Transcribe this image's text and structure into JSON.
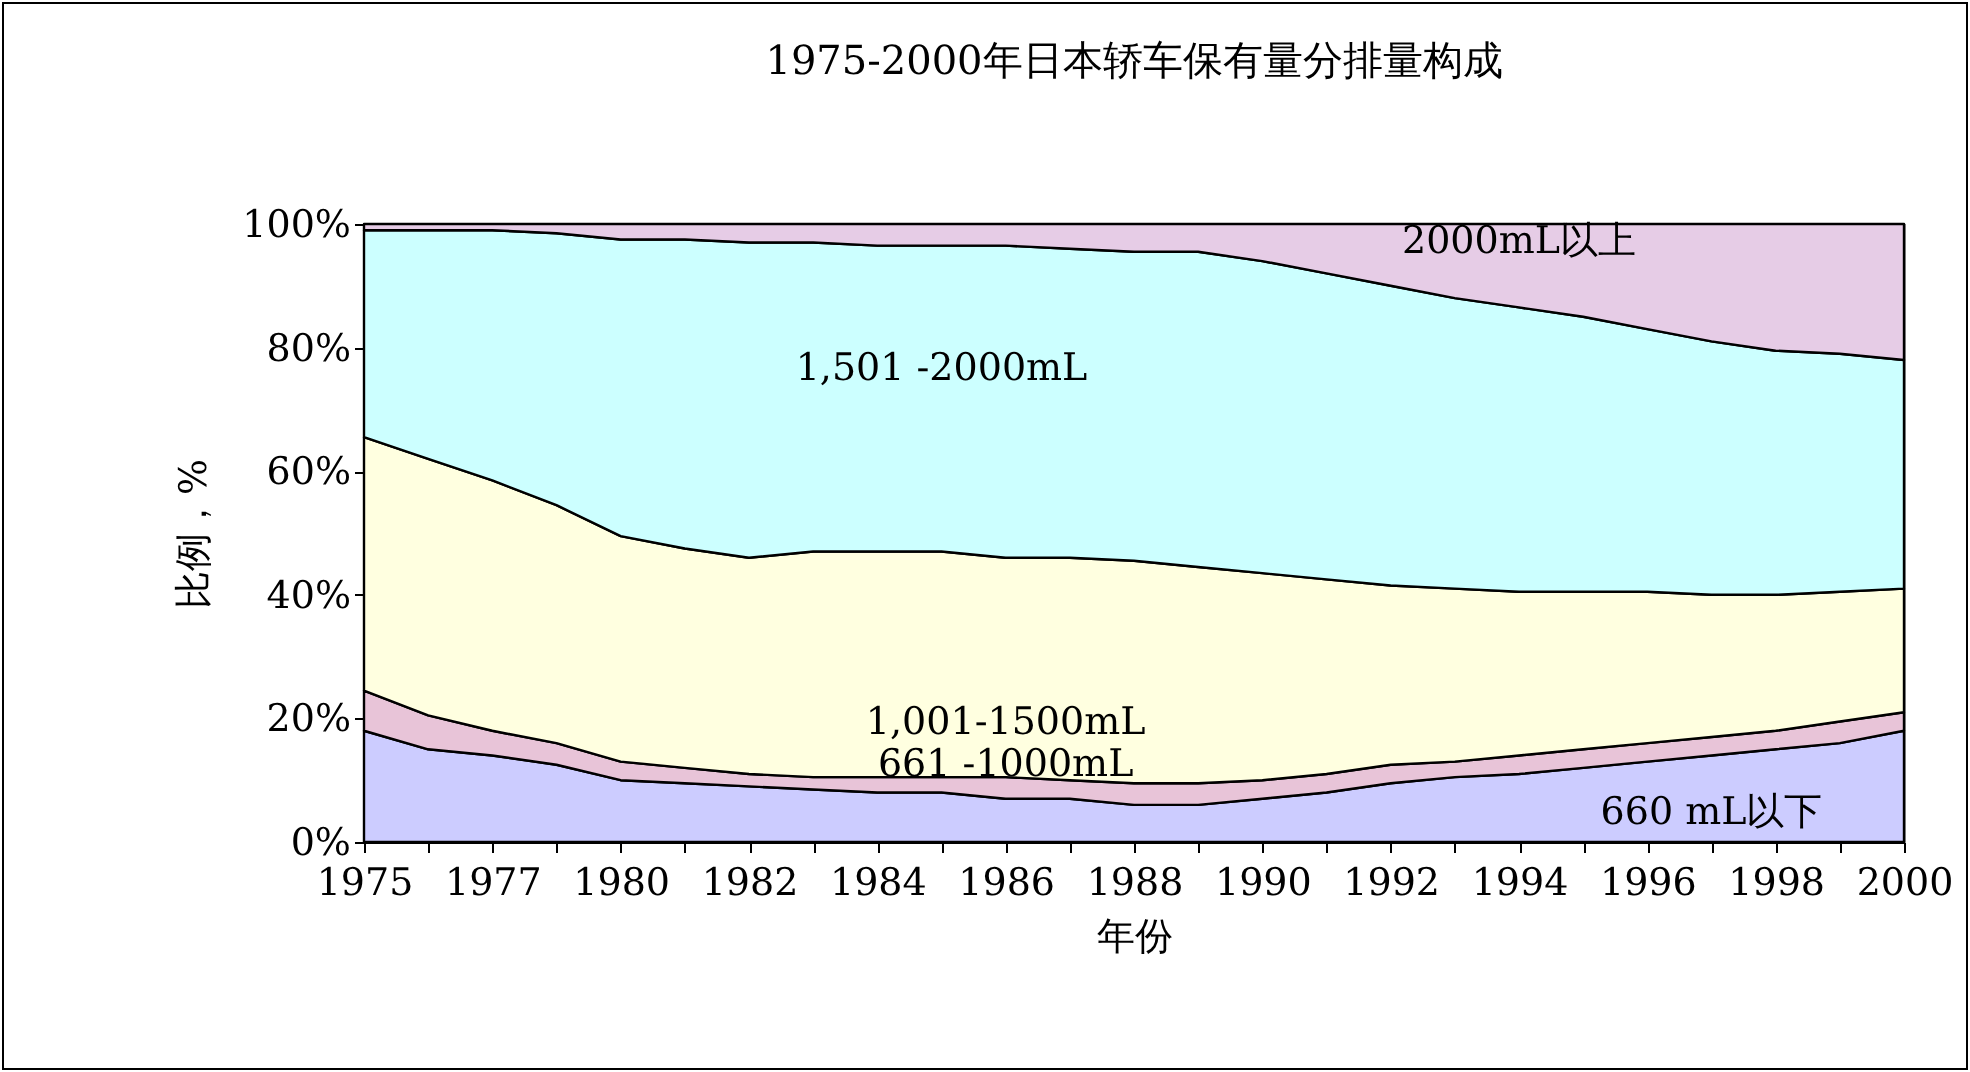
{
  "chart_data": {
    "type": "area",
    "stacked": true,
    "title": "1975-2000年日本轿车保有量分排量构成",
    "xlabel": "年份",
    "ylabel": "比例，%",
    "categories": [
      "1975",
      null,
      "1977",
      null,
      "1980",
      null,
      "1982",
      null,
      "1984",
      null,
      "1986",
      null,
      "1988",
      null,
      "1990",
      null,
      "1992",
      null,
      "1994",
      null,
      "1996",
      null,
      "1998",
      null,
      "2000"
    ],
    "ylim": [
      0,
      100
    ],
    "yticks": [
      {
        "value": 0,
        "label": "0%"
      },
      {
        "value": 20,
        "label": "20%"
      },
      {
        "value": 40,
        "label": "40%"
      },
      {
        "value": 60,
        "label": "60%"
      },
      {
        "value": 80,
        "label": "80%"
      },
      {
        "value": 100,
        "label": "100%"
      }
    ],
    "grid": false,
    "legend": false,
    "series": [
      {
        "name": "660 mL以下",
        "color": "#ccccff",
        "values": [
          18,
          15,
          14,
          12.5,
          10,
          9.5,
          9,
          8.5,
          8,
          8,
          7,
          7,
          6,
          6,
          7,
          8,
          9.5,
          10.5,
          11,
          12,
          13,
          14,
          15,
          16,
          18
        ]
      },
      {
        "name": "661 -1000mL",
        "color": "#e8c4d8",
        "values": [
          6.5,
          5.5,
          4,
          3.5,
          3,
          2.5,
          2,
          2,
          2.5,
          2.5,
          3.5,
          3,
          3.5,
          3.5,
          3,
          3,
          3,
          2.5,
          3,
          3,
          3,
          3,
          3,
          3.5,
          3
        ]
      },
      {
        "name": "1,001-1500mL",
        "color": "#ffffe0",
        "values": [
          41,
          41.5,
          40.5,
          38.5,
          36.5,
          35.5,
          35,
          36.5,
          36.5,
          36.5,
          35.5,
          36,
          36,
          35,
          33.5,
          31.5,
          29,
          28,
          26.5,
          25.5,
          24.5,
          23,
          22,
          21,
          20
        ]
      },
      {
        "name": "1,501 -2000mL",
        "color": "#ccffff",
        "values": [
          33.5,
          37,
          40.5,
          44,
          48,
          50,
          51,
          50,
          49.5,
          49.5,
          50.5,
          50,
          50,
          51,
          50.5,
          49.5,
          48.5,
          47,
          46,
          44.5,
          42.5,
          41,
          39.5,
          38.5,
          37
        ]
      },
      {
        "name": "2000mL以上",
        "color": "#e6cce6",
        "values": [
          1,
          1,
          1,
          1.5,
          2.5,
          2.5,
          3,
          3,
          3.5,
          3.5,
          3.5,
          4,
          4.5,
          4.5,
          6,
          8,
          10,
          12,
          13.5,
          15,
          17,
          19,
          20.5,
          21,
          22
        ]
      }
    ]
  }
}
